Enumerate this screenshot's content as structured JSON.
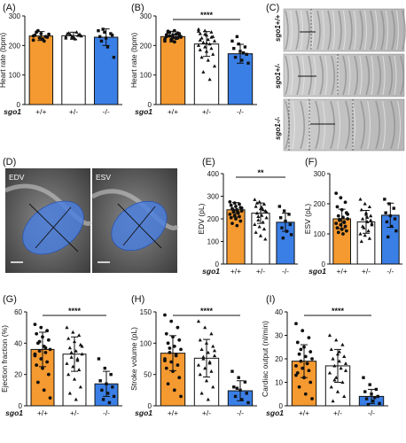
{
  "panels": {
    "A": "(A)",
    "B": "(B)",
    "C": "(C)",
    "D": "(D)",
    "E": "(E)",
    "F": "(F)",
    "G": "(G)",
    "H": "(H)",
    "I": "(I)"
  },
  "kymograph": {
    "labels": [
      "sgo1+/+",
      "sgo1+/-",
      "sgo1-/-"
    ]
  },
  "heart_images": {
    "left": "EDV",
    "right": "ESV"
  },
  "colors": {
    "wt": "#f59a30",
    "het": "#ffffff",
    "ko": "#3a7fe6",
    "segmentation": "#4a7fe0"
  },
  "chart_data": [
    {
      "id": "A",
      "type": "bar",
      "ylabel": "Heart rate (bpm)",
      "ylim": [
        0,
        300
      ],
      "yticks": [
        0,
        100,
        200,
        300
      ],
      "genotype_label": "sgo1",
      "categories": [
        "+/+",
        "+/-",
        "-/-"
      ],
      "values": [
        232,
        233,
        228
      ],
      "errors": [
        15,
        12,
        28
      ],
      "significance": "",
      "points": [
        [
          218,
          225,
          230,
          235,
          240,
          228,
          245,
          222,
          238,
          250,
          215,
          232
        ],
        [
          225,
          230,
          235,
          240,
          228,
          238,
          242,
          222,
          232,
          236,
          245,
          230,
          227,
          234
        ],
        [
          250,
          245,
          240,
          230,
          225,
          235,
          215,
          195,
          160,
          255
        ]
      ]
    },
    {
      "id": "B",
      "type": "bar",
      "ylabel": "Heart rate (bpm)",
      "ylim": [
        0,
        300
      ],
      "yticks": [
        0,
        100,
        200,
        300
      ],
      "genotype_label": "sgo1",
      "categories": [
        "+/+",
        "+/-",
        "-/-"
      ],
      "values": [
        230,
        205,
        172
      ],
      "errors": [
        18,
        42,
        32
      ],
      "significance": "****",
      "points": [
        [
          215,
          220,
          225,
          230,
          235,
          240,
          245,
          250,
          228,
          232,
          238,
          222,
          218,
          242,
          236,
          226,
          234,
          248,
          212,
          230,
          244,
          224
        ],
        [
          255,
          250,
          245,
          240,
          235,
          230,
          225,
          220,
          215,
          210,
          205,
          200,
          195,
          190,
          185,
          180,
          170,
          160,
          150,
          130,
          110,
          85,
          248,
          238,
          228,
          218,
          208
        ],
        [
          215,
          205,
          195,
          190,
          180,
          170,
          160,
          150,
          140,
          230,
          175
        ]
      ]
    },
    {
      "id": "E",
      "type": "bar",
      "ylabel": "EDV (pL)",
      "ylim": [
        0,
        400
      ],
      "yticks": [
        0,
        100,
        200,
        300,
        400
      ],
      "genotype_label": "sgo1",
      "categories": [
        "+/+",
        "+/-",
        "-/-"
      ],
      "values": [
        240,
        225,
        185
      ],
      "errors": [
        32,
        45,
        40
      ],
      "significance": "**",
      "points": [
        [
          275,
          270,
          265,
          260,
          255,
          250,
          245,
          240,
          235,
          230,
          225,
          220,
          215,
          210,
          205,
          200,
          190,
          180,
          170,
          248,
          238,
          228
        ],
        [
          285,
          275,
          265,
          255,
          245,
          235,
          225,
          215,
          205,
          195,
          185,
          175,
          165,
          155,
          140,
          125,
          110,
          270,
          250,
          230,
          210,
          240
        ],
        [
          255,
          235,
          220,
          205,
          190,
          175,
          160,
          145,
          130,
          115
        ]
      ]
    },
    {
      "id": "F",
      "type": "bar",
      "ylabel": "ESV (pL)",
      "ylim": [
        0,
        300
      ],
      "yticks": [
        0,
        100,
        200,
        300
      ],
      "genotype_label": "sgo1",
      "categories": [
        "+/+",
        "+/-",
        "-/-"
      ],
      "values": [
        150,
        140,
        162
      ],
      "errors": [
        32,
        38,
        40
      ],
      "significance": "",
      "points": [
        [
          235,
          220,
          205,
          190,
          180,
          170,
          160,
          155,
          150,
          145,
          140,
          135,
          130,
          125,
          120,
          115,
          110,
          105,
          100,
          165,
          148,
          138
        ],
        [
          215,
          200,
          190,
          180,
          170,
          160,
          150,
          140,
          130,
          120,
          110,
          100,
          95,
          85,
          75,
          165,
          145,
          125,
          155,
          135
        ],
        [
          215,
          200,
          185,
          170,
          160,
          150,
          140,
          125,
          110,
          90
        ]
      ]
    },
    {
      "id": "G",
      "type": "bar",
      "ylabel": "Ejection fraction (%)",
      "ylim": [
        0,
        60
      ],
      "yticks": [
        0,
        20,
        40,
        60
      ],
      "genotype_label": "sgo1",
      "categories": [
        "+/+",
        "+/-",
        "-/-"
      ],
      "values": [
        36,
        33,
        14
      ],
      "errors": [
        11,
        11,
        8
      ],
      "significance": "****",
      "points": [
        [
          52,
          50,
          48,
          46,
          44,
          42,
          40,
          38,
          36,
          35,
          34,
          32,
          30,
          28,
          26,
          24,
          20,
          15,
          10,
          5,
          41,
          37,
          33
        ],
        [
          50,
          47,
          45,
          43,
          41,
          39,
          37,
          35,
          33,
          31,
          29,
          27,
          25,
          23,
          20,
          17,
          12,
          8,
          4,
          38,
          34,
          30
        ],
        [
          30,
          24,
          20,
          16,
          14,
          12,
          10,
          8,
          6,
          4,
          2
        ]
      ]
    },
    {
      "id": "H",
      "type": "bar",
      "ylabel": "Stroke volume (pL)",
      "ylim": [
        0,
        150
      ],
      "yticks": [
        0,
        50,
        100,
        150
      ],
      "genotype_label": "sgo1",
      "categories": [
        "+/+",
        "+/-",
        "-/-"
      ],
      "values": [
        84,
        76,
        24
      ],
      "errors": [
        28,
        30,
        16
      ],
      "significance": "****",
      "points": [
        [
          145,
          135,
          125,
          115,
          110,
          105,
          100,
          95,
          90,
          85,
          80,
          75,
          70,
          65,
          60,
          55,
          45,
          35,
          25,
          15,
          92,
          82,
          72
        ],
        [
          135,
          125,
          115,
          105,
          100,
          95,
          90,
          85,
          80,
          75,
          70,
          65,
          60,
          55,
          50,
          40,
          30,
          20,
          10,
          88,
          78,
          68
        ],
        [
          55,
          45,
          38,
          30,
          25,
          20,
          15,
          10,
          5,
          28
        ]
      ]
    },
    {
      "id": "I",
      "type": "bar",
      "ylabel": "Cardiac output (nl/min)",
      "ylim": [
        0,
        40
      ],
      "yticks": [
        0,
        10,
        20,
        30,
        40
      ],
      "genotype_label": "sgo1",
      "categories": [
        "+/+",
        "+/-",
        "-/-"
      ],
      "values": [
        19,
        17,
        4
      ],
      "errors": [
        7,
        7,
        3
      ],
      "significance": "****",
      "points": [
        [
          35,
          32,
          29,
          27,
          25,
          23,
          22,
          21,
          20,
          19,
          18,
          17,
          16,
          15,
          14,
          12,
          10,
          8,
          5,
          3,
          24,
          18,
          13
        ],
        [
          30,
          28,
          26,
          24,
          22,
          21,
          20,
          19,
          18,
          17,
          16,
          14,
          12,
          10,
          8,
          6,
          4,
          2,
          23,
          15,
          11
        ],
        [
          12,
          9,
          7,
          6,
          5,
          4,
          3,
          2,
          1,
          0.5,
          3.5
        ]
      ]
    }
  ]
}
